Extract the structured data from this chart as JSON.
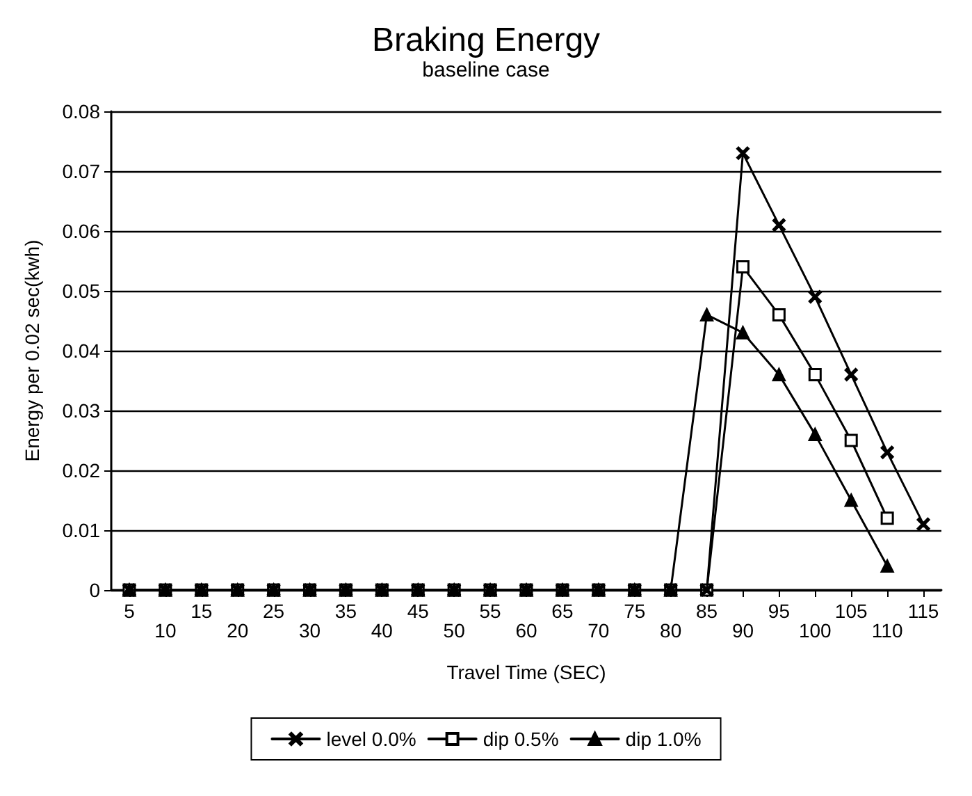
{
  "chart_data": {
    "type": "line",
    "title": "Braking Energy",
    "subtitle": "baseline case",
    "xlabel": "Travel Time (SEC)",
    "ylabel": "Energy per 0.02 sec(kwh)",
    "categories": [
      "5",
      "10",
      "15",
      "20",
      "25",
      "30",
      "35",
      "40",
      "45",
      "50",
      "55",
      "60",
      "65",
      "70",
      "75",
      "80",
      "85",
      "90",
      "95",
      "100",
      "105",
      "110",
      "115"
    ],
    "series": [
      {
        "name": "level 0.0%",
        "color": "#000000",
        "marker": "cross",
        "values": [
          0,
          0,
          0,
          0,
          0,
          0,
          0,
          0,
          0,
          0,
          0,
          0,
          0,
          0,
          0,
          0,
          0,
          0.073,
          0.061,
          0.049,
          0.036,
          0.023,
          0.011
        ]
      },
      {
        "name": "dip 0.5%",
        "color": "#000000",
        "marker": "square",
        "values": [
          0,
          0,
          0,
          0,
          0,
          0,
          0,
          0,
          0,
          0,
          0,
          0,
          0,
          0,
          0,
          0,
          0,
          0.054,
          0.046,
          0.036,
          0.025,
          0.012,
          null
        ]
      },
      {
        "name": "dip 1.0%",
        "color": "#000000",
        "marker": "triangle",
        "values": [
          0,
          0,
          0,
          0,
          0,
          0,
          0,
          0,
          0,
          0,
          0,
          0,
          0,
          0,
          0,
          0,
          0.046,
          0.043,
          0.036,
          0.026,
          0.015,
          0.004,
          null
        ]
      }
    ],
    "ylim": [
      0,
      0.08
    ],
    "yticks": [
      0,
      0.01,
      0.02,
      0.03,
      0.04,
      0.05,
      0.06,
      0.07,
      0.08
    ],
    "grid": "y",
    "legend": "bottom",
    "line_style": "solid"
  }
}
